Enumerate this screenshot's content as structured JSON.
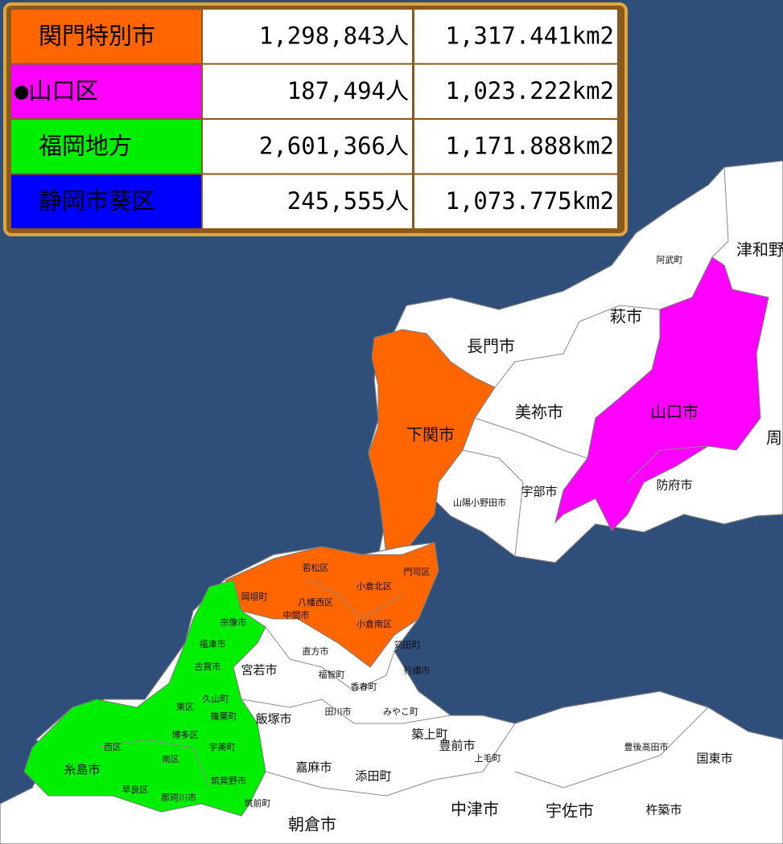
{
  "table": {
    "rows": [
      [
        "関門特別市",
        "1,298,843人",
        "1,317.441km2"
      ],
      [
        "●山口区",
        "187,494人",
        "1,023.222km2"
      ],
      [
        "福岡地方",
        "2,601,366人",
        "1,171.888km2"
      ],
      [
        "静岡市葵区",
        "245,555人",
        "1,073.775km2"
      ]
    ]
  },
  "map_labels": [
    "阿武町",
    "津和野",
    "萩市",
    "長門市",
    "美祢市",
    "山口市",
    "周",
    "下関市",
    "宇部市",
    "山陽小野田市",
    "防府市",
    "若松区",
    "門司区",
    "八幡西区",
    "小倉北区",
    "小倉南区",
    "岡垣町",
    "中間市",
    "苅田町",
    "行橋市",
    "宗像市",
    "福津市",
    "古賀市",
    "宮若市",
    "直方市",
    "福智町",
    "田川市",
    "香春町",
    "みやこ町",
    "飯塚市",
    "築上町",
    "豊前市",
    "上毛町",
    "嘉麻市",
    "添田町",
    "豊後高田市",
    "国東市",
    "中津市",
    "宇佐市",
    "杵築市",
    "朝倉市",
    "筑前町",
    "糸島市",
    "西区",
    "早良区",
    "那珂川市",
    "篠栗町",
    "宇美町",
    "久山町",
    "東区",
    "博多区",
    "南区",
    "筑紫野市"
  ]
}
